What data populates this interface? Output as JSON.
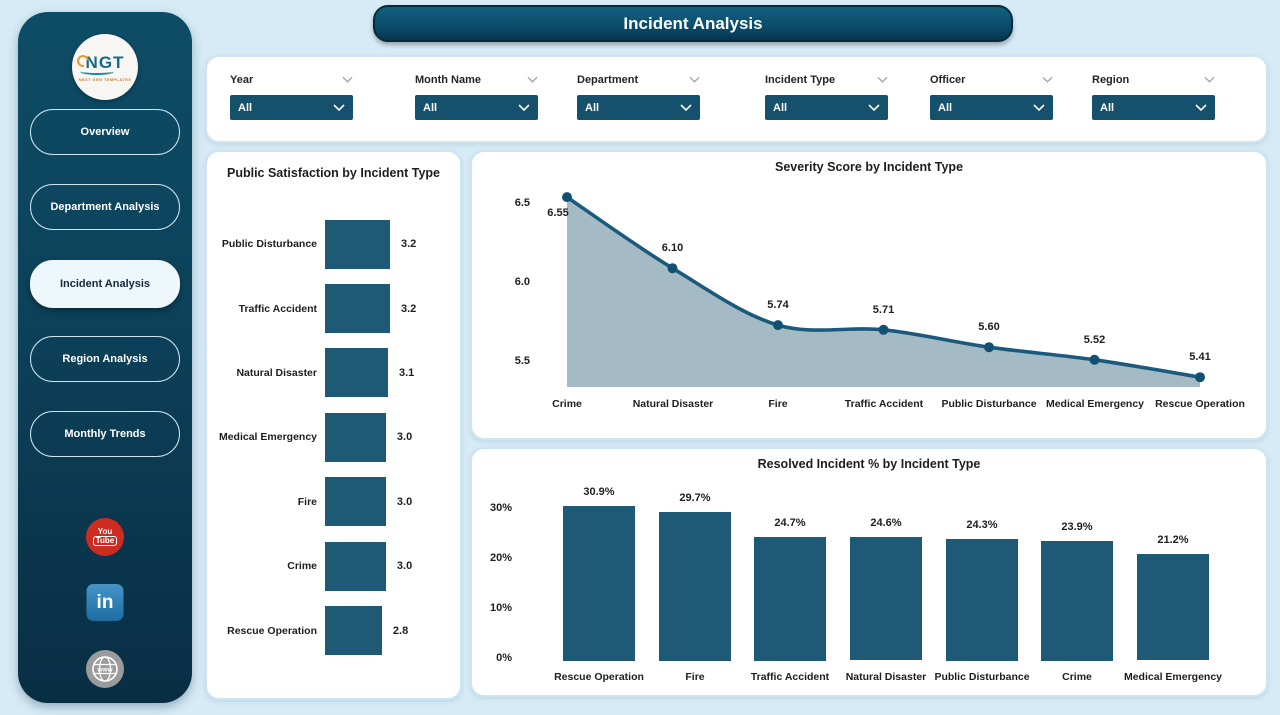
{
  "header": {
    "title": "Incident Analysis"
  },
  "sidebar": {
    "logo_text": "NGT",
    "logo_subtext": "NEXT GEN TEMPLATES",
    "items": [
      {
        "label": "Overview",
        "active": false
      },
      {
        "label": "Department Analysis",
        "active": false
      },
      {
        "label": "Incident Analysis",
        "active": true
      },
      {
        "label": "Region Analysis",
        "active": false
      },
      {
        "label": "Monthly Trends",
        "active": false
      }
    ],
    "social": [
      {
        "icon": "youtube-icon",
        "lines": [
          "You",
          "Tube"
        ],
        "color": "#cf2b20"
      },
      {
        "icon": "linkedin-icon",
        "label": "in",
        "color": "#2d76ab"
      },
      {
        "icon": "website-icon",
        "label": "www",
        "color": "#9b9b9b"
      }
    ]
  },
  "filters": [
    {
      "label": "Year",
      "value": "All"
    },
    {
      "label": "Month Name",
      "value": "All"
    },
    {
      "label": "Department",
      "value": "All"
    },
    {
      "label": "Incident Type",
      "value": "All"
    },
    {
      "label": "Officer",
      "value": "All"
    },
    {
      "label": "Region",
      "value": "All"
    }
  ],
  "colors": {
    "bar_fill": "#1e5a75",
    "line": "#1b5a7d",
    "point": "#115070",
    "area_fill": "#9fb6c2",
    "dropdown_bg": "#15506c",
    "sidebar_top": "#0e4c66",
    "sidebar_bottom": "#092e44",
    "page_bg": "#d7ebf6",
    "active_nav_bg": "#eef7fb"
  },
  "chart_data": [
    {
      "type": "bar",
      "orientation": "horizontal",
      "title": "Public Satisfaction by Incident Type",
      "categories": [
        "Public Disturbance",
        "Traffic Accident",
        "Natural Disaster",
        "Medical Emergency",
        "Fire",
        "Crime",
        "Rescue Operation"
      ],
      "values": [
        3.2,
        3.2,
        3.1,
        3.0,
        3.0,
        3.0,
        2.8
      ],
      "labels": [
        "3.2",
        "3.2",
        "3.1",
        "3.0",
        "3.0",
        "3.0",
        "2.8"
      ],
      "xlim": [
        0,
        3.2
      ],
      "grid": false,
      "legend": "none"
    },
    {
      "type": "area",
      "title": "Severity Score by Incident Type",
      "categories": [
        "Crime",
        "Natural Disaster",
        "Fire",
        "Traffic Accident",
        "Public Disturbance",
        "Medical Emergency",
        "Rescue Operation"
      ],
      "values": [
        6.55,
        6.1,
        5.74,
        5.71,
        5.6,
        5.52,
        5.41
      ],
      "labels": [
        "6.55",
        "6.10",
        "5.74",
        "5.71",
        "5.60",
        "5.52",
        "5.41"
      ],
      "yticks": [
        6.5,
        6.0,
        5.5
      ],
      "ytick_labels": [
        "6.5",
        "6.0",
        "5.5"
      ],
      "ylim": [
        5.39,
        6.62
      ],
      "grid": false,
      "legend": "none"
    },
    {
      "type": "bar",
      "orientation": "vertical",
      "title": "Resolved Incident % by Incident Type",
      "categories": [
        "Rescue Operation",
        "Fire",
        "Traffic Accident",
        "Natural Disaster",
        "Public Disturbance",
        "Crime",
        "Medical Emergency"
      ],
      "values": [
        30.9,
        29.7,
        24.7,
        24.6,
        24.3,
        23.9,
        21.2
      ],
      "labels": [
        "30.9%",
        "29.7%",
        "24.7%",
        "24.6%",
        "24.3%",
        "23.9%",
        "21.2%"
      ],
      "yticks": [
        30,
        20,
        10,
        0
      ],
      "ytick_labels": [
        "30%",
        "20%",
        "10%",
        "0%"
      ],
      "ylim": [
        0,
        33
      ],
      "grid": false,
      "legend": "none"
    }
  ]
}
